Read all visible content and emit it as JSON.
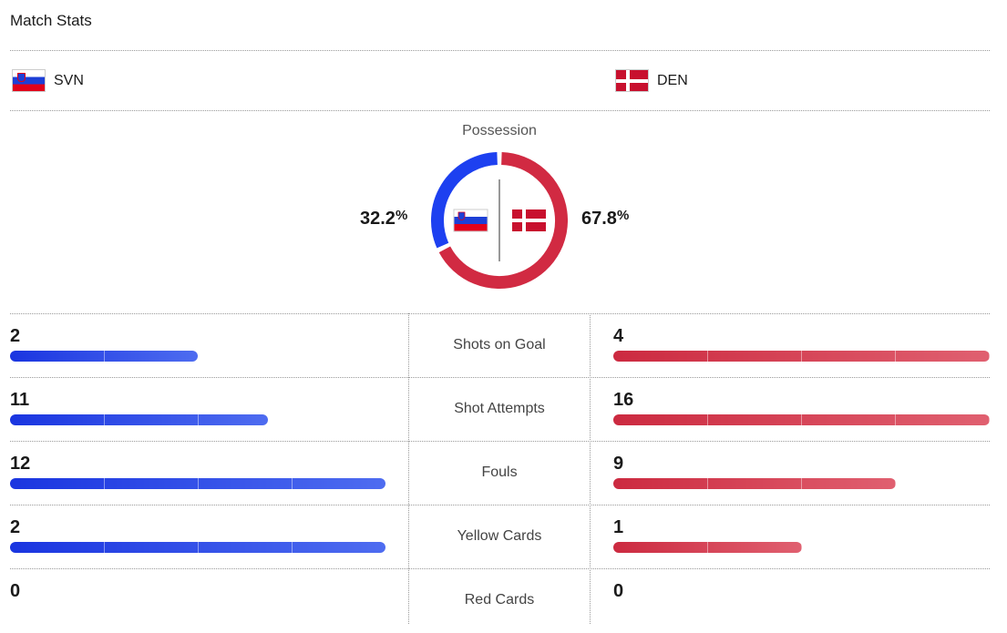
{
  "title": "Match Stats",
  "home": {
    "code": "SVN",
    "flag": "slovenia-flag",
    "color": "#1a35e0"
  },
  "away": {
    "code": "DEN",
    "flag": "denmark-flag",
    "color": "#cc2a40"
  },
  "possession": {
    "label": "Possession",
    "home_value": "32.2",
    "away_value": "67.8",
    "unit": "%",
    "home_fraction": 0.322,
    "away_fraction": 0.678
  },
  "stats": [
    {
      "label": "Shots on Goal",
      "home": "2",
      "away": "4",
      "home_fill": 0.5,
      "away_fill": 1.0
    },
    {
      "label": "Shot Attempts",
      "home": "11",
      "away": "16",
      "home_fill": 0.6875,
      "away_fill": 1.0
    },
    {
      "label": "Fouls",
      "home": "12",
      "away": "9",
      "home_fill": 1.0,
      "away_fill": 0.75
    },
    {
      "label": "Yellow Cards",
      "home": "2",
      "away": "1",
      "home_fill": 1.0,
      "away_fill": 0.5
    },
    {
      "label": "Red Cards",
      "home": "0",
      "away": "0",
      "home_fill": 0,
      "away_fill": 0
    }
  ]
}
